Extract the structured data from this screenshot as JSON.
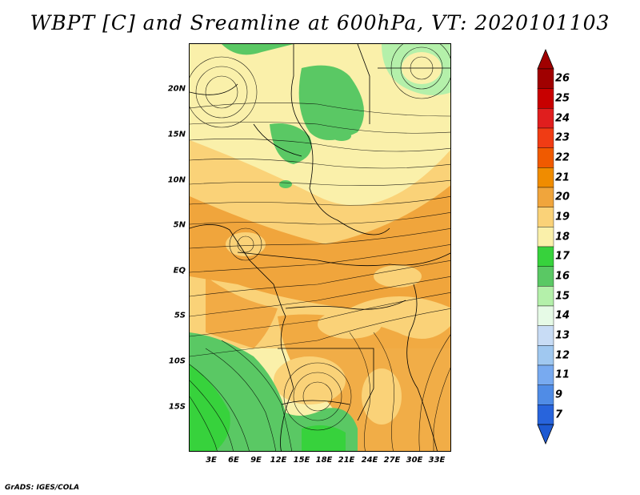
{
  "title": "WBPT [C] and Sreamline at 600hPa, VT: 2020101103",
  "footer": "GrADS: IGES/COLA",
  "lat_ticks": [
    "20N",
    "15N",
    "10N",
    "5N",
    "EQ",
    "5S",
    "10S",
    "15S"
  ],
  "lon_ticks": [
    "3E",
    "6E",
    "9E",
    "12E",
    "15E",
    "18E",
    "21E",
    "24E",
    "27E",
    "30E",
    "33E"
  ],
  "colorbar": {
    "labels": [
      "26",
      "25",
      "24",
      "23",
      "22",
      "21",
      "20",
      "19",
      "18",
      "17",
      "16",
      "15",
      "14",
      "13",
      "12",
      "11",
      "9",
      "7"
    ],
    "colors": [
      "#a00000",
      "#c80000",
      "#e01e1e",
      "#f03c14",
      "#f05a00",
      "#f08c00",
      "#f0a53c",
      "#fad278",
      "#faf0aa",
      "#37d23c",
      "#5ac864",
      "#b4f0aa",
      "#e6fae6",
      "#c8dcf5",
      "#a0c8f0",
      "#78aaf0",
      "#508ce6",
      "#2864dc"
    ],
    "top_arrow_color": "#a00000",
    "bottom_arrow_color": "#1e5ad2"
  },
  "map_colors": {
    "green": "#5ac864",
    "light_green": "#b4f0aa",
    "pale_yellow": "#faf0aa",
    "yellow": "#fad278",
    "orange": "#f0a53c"
  }
}
